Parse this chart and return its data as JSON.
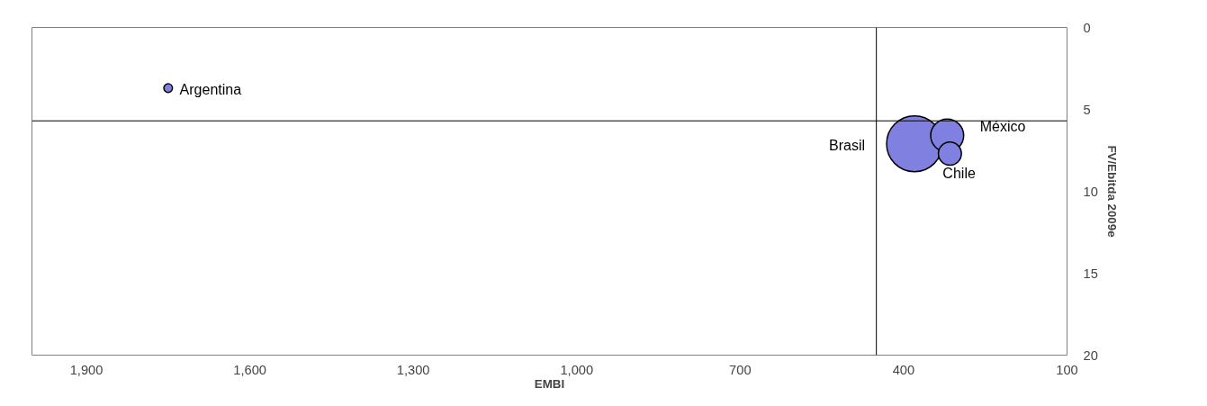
{
  "chart_data": {
    "type": "bubble",
    "xlabel": "EMBI",
    "ylabel": "FV/Ebitda 2009e",
    "xlim": [
      2000,
      100
    ],
    "ylim": [
      20,
      0
    ],
    "xticks": [
      {
        "value": 1900,
        "label": "1,900"
      },
      {
        "value": 1600,
        "label": "1,600"
      },
      {
        "value": 1300,
        "label": "1,300"
      },
      {
        "value": 1000,
        "label": "1,000"
      },
      700,
      400,
      100
    ],
    "yticks": [
      0,
      5,
      10,
      15,
      20
    ],
    "series": [
      {
        "name": "Argentina",
        "color": "#8080e0",
        "x": [
          1750
        ],
        "values": [
          3.7
        ],
        "sizes": [
          0.024
        ]
      },
      {
        "name": "Brasil",
        "color": "#8080e0",
        "x": [
          380
        ],
        "values": [
          7.1
        ],
        "sizes": [
          1
        ]
      },
      {
        "name": "México",
        "color": "#8080e0",
        "x": [
          320
        ],
        "values": [
          6.6
        ],
        "sizes": [
          0.35
        ]
      },
      {
        "name": "Chile",
        "color": "#8080e0",
        "x": [
          315
        ],
        "values": [
          7.7
        ],
        "sizes": [
          0.17
        ]
      }
    ],
    "ref_lines": [
      {
        "axis": "x",
        "value": 450
      },
      {
        "axis": "y",
        "value": 5.7
      }
    ],
    "grid": false
  }
}
